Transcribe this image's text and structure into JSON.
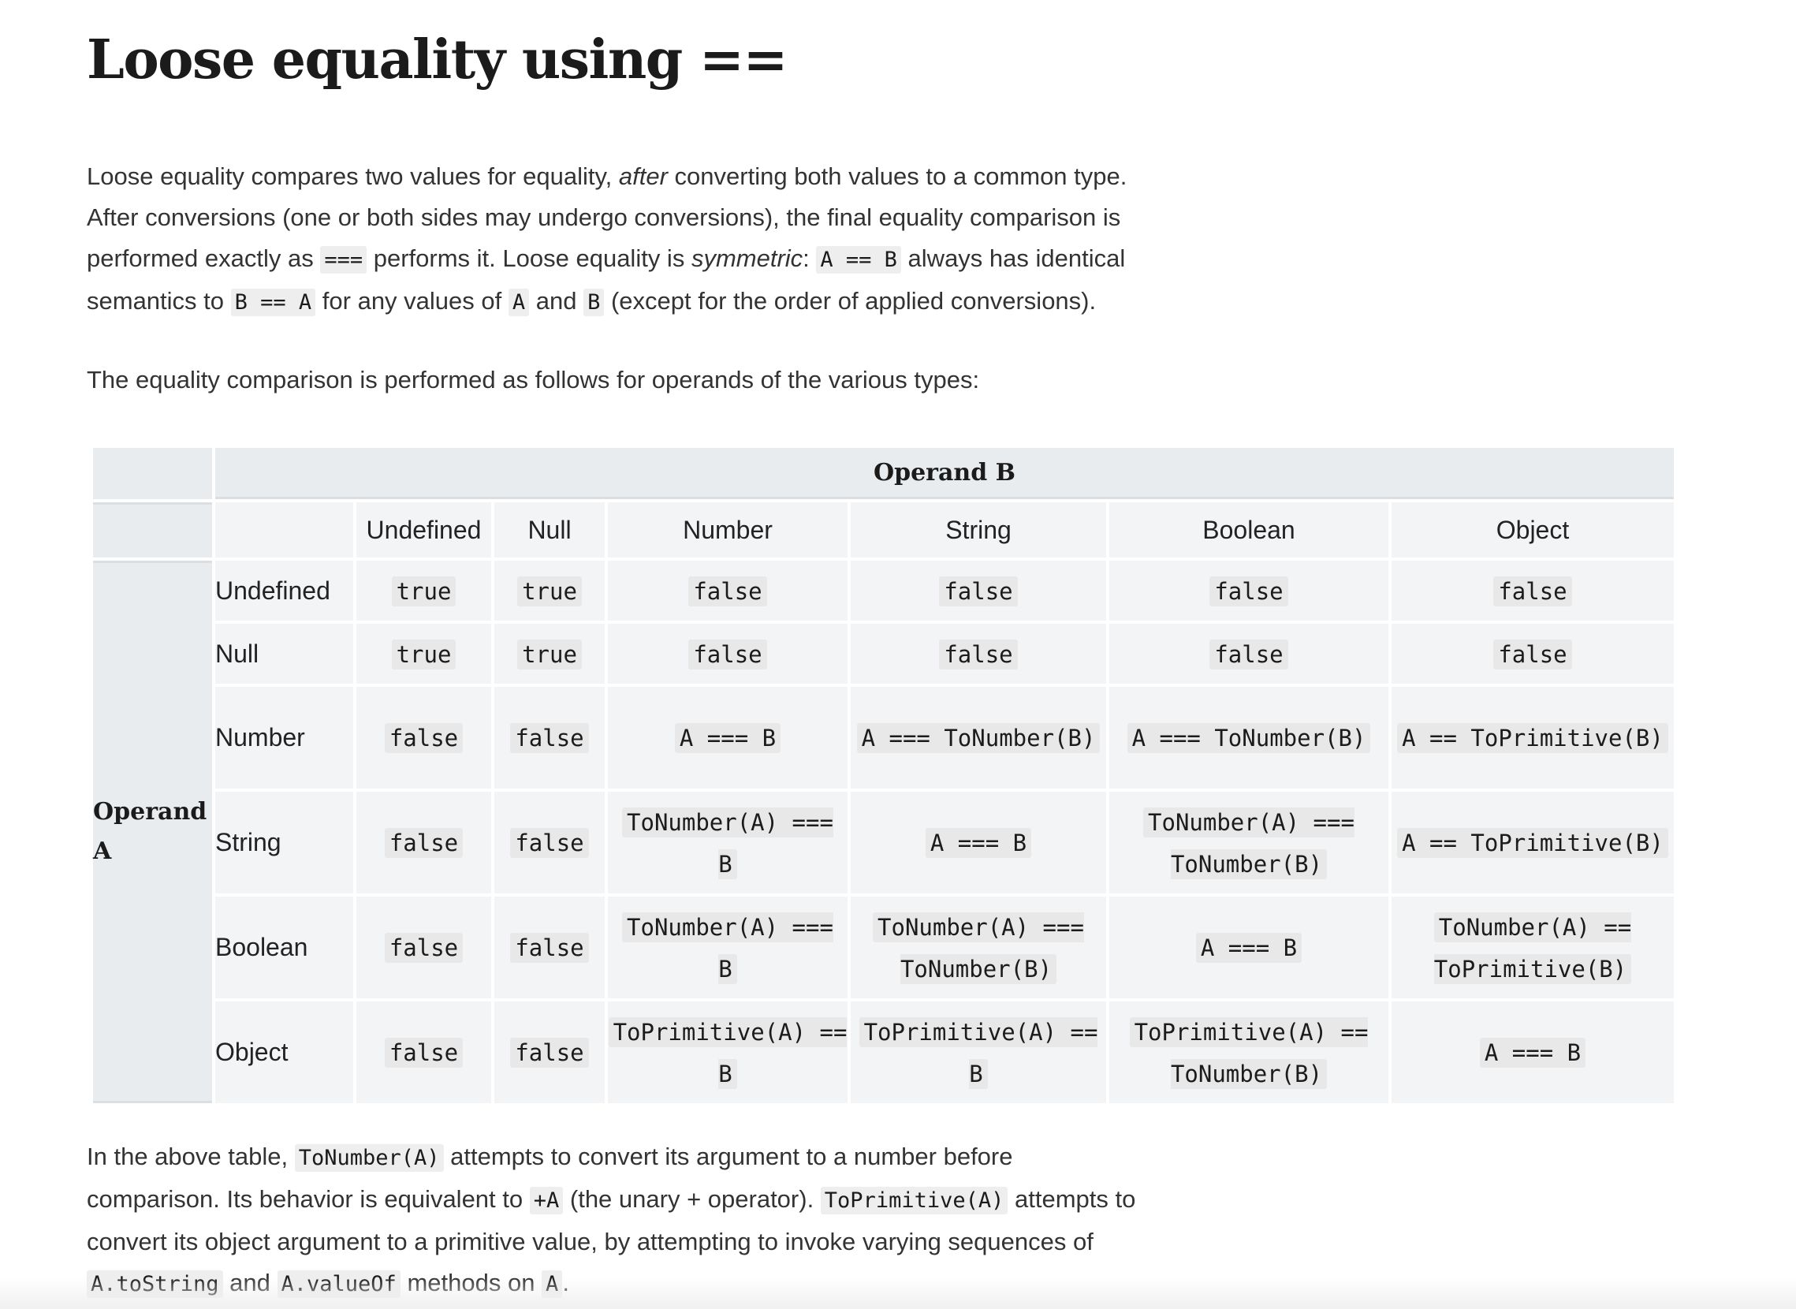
{
  "heading": "Loose equality using ==",
  "intro": {
    "t1": "Loose equality compares two values for equality, ",
    "em1": "after",
    "t2": " converting both values to a common type. After conversions (one or both sides may undergo conversions), the final equality comparison is performed exactly as ",
    "c1": "===",
    "t3": " performs it. Loose equality is ",
    "em2": "symmetric",
    "t4": ": ",
    "c2": "A == B",
    "t5": " always has identical semantics to ",
    "c3": "B == A",
    "t6": " for any values of ",
    "c4": "A",
    "t7": " and ",
    "c5": "B",
    "t8": " (except for the order of applied conversions)."
  },
  "lead": "The equality comparison is performed as follows for operands of the various types:",
  "table": {
    "operand_b": "Operand B",
    "operand_a": "Operand A",
    "columns": [
      "Undefined",
      "Null",
      "Number",
      "String",
      "Boolean",
      "Object"
    ],
    "rows": [
      {
        "label": "Undefined",
        "cells": [
          "true",
          "true",
          "false",
          "false",
          "false",
          "false"
        ]
      },
      {
        "label": "Null",
        "cells": [
          "true",
          "true",
          "false",
          "false",
          "false",
          "false"
        ]
      },
      {
        "label": "Number",
        "cells": [
          "false",
          "false",
          "A === B",
          "A === ToNumber(B)",
          "A === ToNumber(B)",
          "A == ToPrimitive(B)"
        ]
      },
      {
        "label": "String",
        "cells": [
          "false",
          "false",
          "ToNumber(A) === B",
          "A === B",
          "ToNumber(A) === ToNumber(B)",
          "A == ToPrimitive(B)"
        ]
      },
      {
        "label": "Boolean",
        "cells": [
          "false",
          "false",
          "ToNumber(A) === B",
          "ToNumber(A) === ToNumber(B)",
          "A === B",
          "ToNumber(A) == ToPrimitive(B)"
        ]
      },
      {
        "label": "Object",
        "cells": [
          "false",
          "false",
          "ToPrimitive(A) == B",
          "ToPrimitive(A) == B",
          "ToPrimitive(A) == ToNumber(B)",
          "A === B"
        ]
      }
    ]
  },
  "outro": {
    "t1": "In the above table, ",
    "c1": "ToNumber(A)",
    "t2": " attempts to convert its argument to a number before comparison. Its behavior is equivalent to ",
    "c2": "+A",
    "t3": " (the unary + operator). ",
    "c3": "ToPrimitive(A)",
    "t4": " attempts to convert its object argument to a primitive value, by attempting to invoke varying sequences of ",
    "c4": "A.toString",
    "t5": " and ",
    "c5": "A.valueOf",
    "t6": " methods on ",
    "c6": "A",
    "t7": "."
  }
}
